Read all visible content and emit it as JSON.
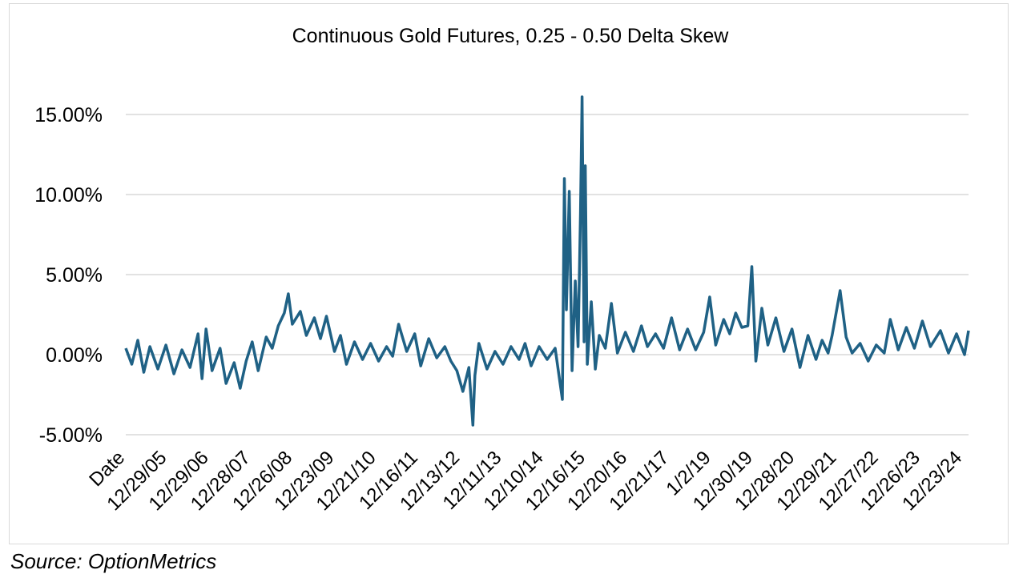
{
  "chart_data": {
    "type": "line",
    "title": "Continuous Gold Futures, 0.25 - 0.50 Delta Skew",
    "xlabel": "",
    "ylabel": "",
    "ylim": [
      -5,
      17
    ],
    "y_ticks": [
      "15.00%",
      "10.00%",
      "5.00%",
      "0.00%",
      "-5.00%"
    ],
    "y_tick_values": [
      15,
      10,
      5,
      0,
      -5
    ],
    "x_tick_labels": [
      "Date",
      "12/29/05",
      "12/29/06",
      "12/28/07",
      "12/26/08",
      "12/23/09",
      "12/21/10",
      "12/16/11",
      "12/13/12",
      "12/11/13",
      "12/10/14",
      "12/16/15",
      "12/20/16",
      "12/21/17",
      "1/2/19",
      "12/30/19",
      "12/28/20",
      "12/29/21",
      "12/27/22",
      "12/26/23",
      "12/23/24"
    ],
    "grid": true,
    "legend": "none",
    "series_color": "#1f6185",
    "series": [
      {
        "values_percent": [
          [
            2005.0,
            0.4
          ],
          [
            2005.15,
            -0.6
          ],
          [
            2005.3,
            0.9
          ],
          [
            2005.45,
            -1.1
          ],
          [
            2005.6,
            0.5
          ],
          [
            2005.8,
            -0.9
          ],
          [
            2006.0,
            0.6
          ],
          [
            2006.2,
            -1.2
          ],
          [
            2006.4,
            0.3
          ],
          [
            2006.6,
            -0.8
          ],
          [
            2006.8,
            1.3
          ],
          [
            2006.9,
            -1.5
          ],
          [
            2007.0,
            1.6
          ],
          [
            2007.15,
            -1.0
          ],
          [
            2007.35,
            0.4
          ],
          [
            2007.5,
            -1.8
          ],
          [
            2007.7,
            -0.5
          ],
          [
            2007.85,
            -2.1
          ],
          [
            2008.0,
            -0.4
          ],
          [
            2008.15,
            0.8
          ],
          [
            2008.3,
            -1.0
          ],
          [
            2008.5,
            1.1
          ],
          [
            2008.65,
            0.4
          ],
          [
            2008.8,
            1.8
          ],
          [
            2008.95,
            2.6
          ],
          [
            2009.05,
            3.8
          ],
          [
            2009.15,
            1.9
          ],
          [
            2009.35,
            2.7
          ],
          [
            2009.5,
            1.2
          ],
          [
            2009.7,
            2.3
          ],
          [
            2009.85,
            1.0
          ],
          [
            2010.0,
            2.4
          ],
          [
            2010.2,
            0.2
          ],
          [
            2010.35,
            1.2
          ],
          [
            2010.5,
            -0.6
          ],
          [
            2010.7,
            0.8
          ],
          [
            2010.9,
            -0.3
          ],
          [
            2011.1,
            0.7
          ],
          [
            2011.3,
            -0.4
          ],
          [
            2011.5,
            0.5
          ],
          [
            2011.65,
            -0.1
          ],
          [
            2011.8,
            1.9
          ],
          [
            2012.0,
            0.2
          ],
          [
            2012.2,
            1.3
          ],
          [
            2012.35,
            -0.7
          ],
          [
            2012.55,
            1.0
          ],
          [
            2012.75,
            -0.2
          ],
          [
            2012.95,
            0.5
          ],
          [
            2013.1,
            -0.4
          ],
          [
            2013.25,
            -1.0
          ],
          [
            2013.4,
            -2.3
          ],
          [
            2013.55,
            -0.8
          ],
          [
            2013.65,
            -4.4
          ],
          [
            2013.7,
            -1.3
          ],
          [
            2013.8,
            0.7
          ],
          [
            2014.0,
            -0.9
          ],
          [
            2014.2,
            0.2
          ],
          [
            2014.4,
            -0.6
          ],
          [
            2014.6,
            0.5
          ],
          [
            2014.8,
            -0.3
          ],
          [
            2014.95,
            0.7
          ],
          [
            2015.1,
            -0.7
          ],
          [
            2015.3,
            0.5
          ],
          [
            2015.5,
            -0.3
          ],
          [
            2015.7,
            0.4
          ],
          [
            2015.88,
            -2.8
          ],
          [
            2015.93,
            11.0
          ],
          [
            2015.98,
            2.8
          ],
          [
            2016.05,
            10.2
          ],
          [
            2016.12,
            -1.0
          ],
          [
            2016.2,
            4.6
          ],
          [
            2016.27,
            0.5
          ],
          [
            2016.33,
            8.8
          ],
          [
            2016.37,
            16.1
          ],
          [
            2016.42,
            0.8
          ],
          [
            2016.45,
            11.8
          ],
          [
            2016.5,
            -0.6
          ],
          [
            2016.6,
            3.3
          ],
          [
            2016.7,
            -0.9
          ],
          [
            2016.8,
            1.2
          ],
          [
            2016.95,
            0.4
          ],
          [
            2017.1,
            3.2
          ],
          [
            2017.25,
            0.1
          ],
          [
            2017.45,
            1.4
          ],
          [
            2017.65,
            0.2
          ],
          [
            2017.85,
            1.8
          ],
          [
            2018.0,
            0.5
          ],
          [
            2018.2,
            1.3
          ],
          [
            2018.4,
            0.4
          ],
          [
            2018.6,
            2.3
          ],
          [
            2018.8,
            0.3
          ],
          [
            2019.0,
            1.6
          ],
          [
            2019.2,
            0.3
          ],
          [
            2019.4,
            1.4
          ],
          [
            2019.55,
            3.6
          ],
          [
            2019.7,
            0.6
          ],
          [
            2019.9,
            2.2
          ],
          [
            2020.05,
            1.3
          ],
          [
            2020.2,
            2.6
          ],
          [
            2020.35,
            1.7
          ],
          [
            2020.5,
            1.8
          ],
          [
            2020.6,
            5.5
          ],
          [
            2020.7,
            -0.4
          ],
          [
            2020.85,
            2.9
          ],
          [
            2021.0,
            0.6
          ],
          [
            2021.2,
            2.3
          ],
          [
            2021.4,
            0.2
          ],
          [
            2021.6,
            1.6
          ],
          [
            2021.8,
            -0.8
          ],
          [
            2022.0,
            1.2
          ],
          [
            2022.2,
            -0.3
          ],
          [
            2022.35,
            0.9
          ],
          [
            2022.5,
            0.1
          ],
          [
            2022.6,
            1.2
          ],
          [
            2022.8,
            4.0
          ],
          [
            2022.95,
            1.1
          ],
          [
            2023.1,
            0.1
          ],
          [
            2023.3,
            0.7
          ],
          [
            2023.5,
            -0.4
          ],
          [
            2023.7,
            0.6
          ],
          [
            2023.9,
            0.1
          ],
          [
            2024.05,
            2.2
          ],
          [
            2024.25,
            0.3
          ],
          [
            2024.45,
            1.7
          ],
          [
            2024.65,
            0.4
          ],
          [
            2024.85,
            2.1
          ],
          [
            2025.05,
            0.5
          ],
          [
            2025.3,
            1.5
          ],
          [
            2025.5,
            0.1
          ],
          [
            2025.7,
            1.3
          ],
          [
            2025.9,
            0.0
          ],
          [
            2026.0,
            1.5
          ]
        ]
      }
    ]
  },
  "source": "Source: OptionMetrics"
}
